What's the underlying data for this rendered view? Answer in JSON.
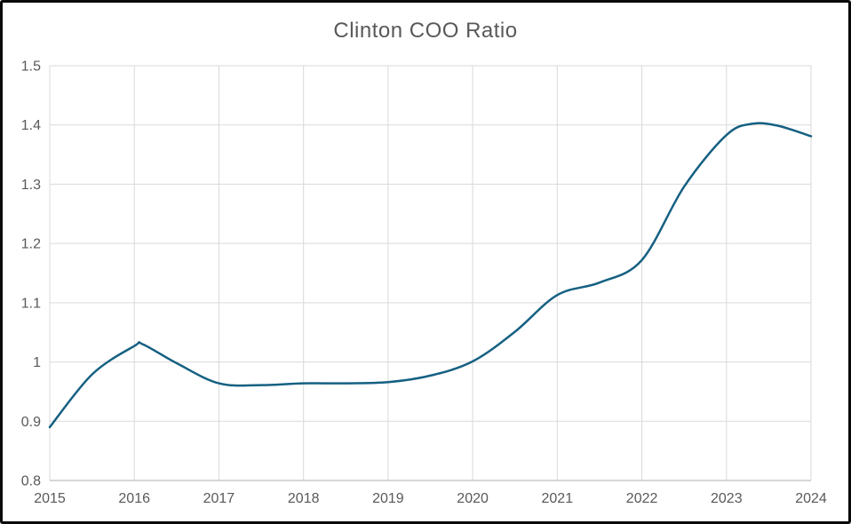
{
  "window": {
    "background": "#FFFFFF",
    "frame_color": "#0A0A0A"
  },
  "chart_data": {
    "type": "line",
    "title": "Clinton COO Ratio",
    "categories": [
      "2015",
      "2016",
      "2017",
      "2018",
      "2019",
      "2020",
      "2021",
      "2022",
      "2023",
      "2024"
    ],
    "values": [
      0.89,
      1.03,
      0.96,
      0.96,
      0.97,
      1.0,
      1.11,
      1.17,
      1.38,
      1.38
    ],
    "smooth_points": [
      [
        2015.0,
        0.89
      ],
      [
        2015.5,
        0.979
      ],
      [
        2016.0,
        1.027
      ],
      [
        2016.1,
        1.03
      ],
      [
        2016.5,
        0.998
      ],
      [
        2017.0,
        0.964
      ],
      [
        2017.5,
        0.961
      ],
      [
        2018.0,
        0.964
      ],
      [
        2018.5,
        0.964
      ],
      [
        2019.0,
        0.966
      ],
      [
        2019.5,
        0.977
      ],
      [
        2020.0,
        1.001
      ],
      [
        2020.5,
        1.051
      ],
      [
        2021.0,
        1.113
      ],
      [
        2021.5,
        1.134
      ],
      [
        2022.0,
        1.172
      ],
      [
        2022.5,
        1.296
      ],
      [
        2023.0,
        1.383
      ],
      [
        2023.3,
        1.402
      ],
      [
        2023.6,
        1.399
      ],
      [
        2024.0,
        1.381
      ]
    ],
    "xlabel": "",
    "ylabel": "",
    "xlim": [
      2015,
      2024
    ],
    "ylim": [
      0.8,
      1.5
    ],
    "x_tick_values": [
      2015,
      2016,
      2017,
      2018,
      2019,
      2020,
      2021,
      2022,
      2023,
      2024
    ],
    "y_tick_values": [
      1.5,
      1.4,
      1.3,
      1.2,
      1.1,
      1.0,
      0.9,
      0.8
    ],
    "y_tick_labels": [
      "1.5",
      "1.4",
      "1.3",
      "1.2",
      "1.1",
      "1",
      "0.9",
      "0.8"
    ],
    "grid": true,
    "legend_position": "none",
    "line_width": 2.5,
    "colors": {
      "line": "#156082",
      "gridline": "#D9D9D9",
      "axis_line": "#BFBFBF",
      "labels": "#595959",
      "title": "#595959"
    }
  }
}
